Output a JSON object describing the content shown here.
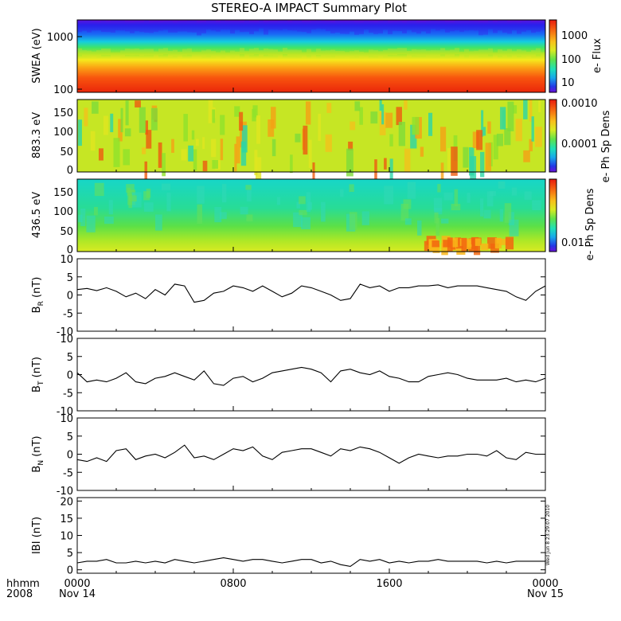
{
  "title": "STEREO-A IMPACT Summary Plot",
  "time_axis": {
    "row1": [
      "0000",
      "0800",
      "1600",
      "0000"
    ],
    "row2": [
      "Nov 14",
      "",
      "",
      "Nov 15"
    ],
    "left_row1": "hhmm",
    "left_row2": "2008"
  },
  "timestamp_note": "Wed Jun 8 23:29:07 2010",
  "colors": {
    "trace": "#000000",
    "frame": "#000000",
    "background": "#ffffff"
  },
  "chart_data": [
    {
      "type": "heatmap",
      "ylabel": "SWEA (eV)",
      "ylog": true,
      "ylim": [
        95,
        2000
      ],
      "yticks": [
        "1000",
        "100"
      ],
      "colorbar": {
        "label": "e- Flux",
        "log": true,
        "ticks": [
          "1000",
          "100",
          "10"
        ]
      },
      "pattern": "energy spectrogram: red/orange below ~250 eV, yellow-green ~300-700 eV, cyan-blue ~1000 eV, blue/violet above ~1500 eV; nearly constant with time"
    },
    {
      "type": "heatmap",
      "ylabel": "883.3 eV",
      "ylim": [
        -5,
        180
      ],
      "yticks": [
        "150",
        "100",
        "50",
        "0"
      ],
      "colorbar": {
        "label": "e- Ph Sp Dens",
        "log": true,
        "ticks": [
          "0.0010",
          "0.0001"
        ]
      },
      "pattern": "pitch-angle distribution: mostly yellow-green with scattered orange/red streaks and occasional cyan specks"
    },
    {
      "type": "heatmap",
      "ylabel": "436.5 eV",
      "ylim": [
        -5,
        180
      ],
      "yticks": [
        "150",
        "100",
        "50",
        "0"
      ],
      "colorbar": {
        "label": "e- Ph Sp Dens",
        "log": true,
        "ticks": [
          "0.01"
        ]
      },
      "pattern": "cyan-green above ~60 deg, green/yellow near 0-40 deg, orange/red enhancement near 0 deg after ~18:00"
    },
    {
      "type": "line",
      "ylabel": "B_R (nT)",
      "ylabel_main": "B",
      "ylabel_sub": "R",
      "ylabel_unit": "(nT)",
      "ylim": [
        -10,
        10
      ],
      "yticks": [
        "10",
        "5",
        "0",
        "-5",
        "-10"
      ],
      "x_hours": [
        0,
        0.5,
        1,
        1.5,
        2,
        2.5,
        3,
        3.5,
        4,
        4.5,
        5,
        5.5,
        6,
        6.5,
        7,
        7.5,
        8,
        8.5,
        9,
        9.5,
        10,
        10.5,
        11,
        11.5,
        12,
        12.5,
        13,
        13.5,
        14,
        14.5,
        15,
        15.5,
        16,
        16.5,
        17,
        17.5,
        18,
        18.5,
        19,
        19.5,
        20,
        20.5,
        21,
        21.5,
        22,
        22.5,
        23,
        23.5,
        24
      ],
      "y": [
        1.5,
        1.8,
        1.2,
        2.0,
        1.0,
        -0.5,
        0.5,
        -1.0,
        1.5,
        0.0,
        3.0,
        2.5,
        -2.0,
        -1.5,
        0.5,
        1.0,
        2.5,
        2.0,
        1.0,
        2.5,
        1.0,
        -0.5,
        0.5,
        2.5,
        2.0,
        1.0,
        0.0,
        -1.5,
        -1.0,
        3.0,
        2.0,
        2.5,
        1.0,
        2.0,
        2.0,
        2.5,
        2.5,
        2.8,
        2.0,
        2.5,
        2.5,
        2.5,
        2.0,
        1.5,
        1.0,
        -0.5,
        -1.5,
        1.0,
        2.5
      ]
    },
    {
      "type": "line",
      "ylabel": "B_T (nT)",
      "ylabel_main": "B",
      "ylabel_sub": "T",
      "ylabel_unit": "(nT)",
      "ylim": [
        -10,
        10
      ],
      "yticks": [
        "10",
        "5",
        "0",
        "-5",
        "-10"
      ],
      "x_hours": [
        0,
        0.5,
        1,
        1.5,
        2,
        2.5,
        3,
        3.5,
        4,
        4.5,
        5,
        5.5,
        6,
        6.5,
        7,
        7.5,
        8,
        8.5,
        9,
        9.5,
        10,
        10.5,
        11,
        11.5,
        12,
        12.5,
        13,
        13.5,
        14,
        14.5,
        15,
        15.5,
        16,
        16.5,
        17,
        17.5,
        18,
        18.5,
        19,
        19.5,
        20,
        20.5,
        21,
        21.5,
        22,
        22.5,
        23,
        23.5,
        24
      ],
      "y": [
        0.5,
        -2.0,
        -1.5,
        -2.0,
        -1.0,
        0.5,
        -2.0,
        -2.5,
        -1.0,
        -0.5,
        0.5,
        -0.5,
        -1.5,
        1.0,
        -2.5,
        -3.0,
        -1.0,
        -0.5,
        -2.0,
        -1.0,
        0.5,
        1.0,
        1.5,
        2.0,
        1.5,
        0.5,
        -2.0,
        1.0,
        1.5,
        0.5,
        0.0,
        1.0,
        -0.5,
        -1.0,
        -2.0,
        -2.0,
        -0.5,
        0.0,
        0.5,
        0.0,
        -1.0,
        -1.5,
        -1.5,
        -1.5,
        -1.0,
        -2.0,
        -1.5,
        -2.0,
        -1.0
      ]
    },
    {
      "type": "line",
      "ylabel": "B_N (nT)",
      "ylabel_main": "B",
      "ylabel_sub": "N",
      "ylabel_unit": "(nT)",
      "ylim": [
        -10,
        10
      ],
      "yticks": [
        "10",
        "5",
        "0",
        "-5",
        "-10"
      ],
      "x_hours": [
        0,
        0.5,
        1,
        1.5,
        2,
        2.5,
        3,
        3.5,
        4,
        4.5,
        5,
        5.5,
        6,
        6.5,
        7,
        7.5,
        8,
        8.5,
        9,
        9.5,
        10,
        10.5,
        11,
        11.5,
        12,
        12.5,
        13,
        13.5,
        14,
        14.5,
        15,
        15.5,
        16,
        16.5,
        17,
        17.5,
        18,
        18.5,
        19,
        19.5,
        20,
        20.5,
        21,
        21.5,
        22,
        22.5,
        23,
        23.5,
        24
      ],
      "y": [
        -1.5,
        -2.0,
        -1.0,
        -2.0,
        1.0,
        1.5,
        -1.5,
        -0.5,
        0.0,
        -1.0,
        0.5,
        2.5,
        -1.0,
        -0.5,
        -1.5,
        0.0,
        1.5,
        1.0,
        2.0,
        -0.5,
        -1.5,
        0.5,
        1.0,
        1.5,
        1.5,
        0.5,
        -0.5,
        1.5,
        1.0,
        2.0,
        1.5,
        0.5,
        -1.0,
        -2.5,
        -1.0,
        0.0,
        -0.5,
        -1.0,
        -0.5,
        -0.5,
        0.0,
        0.0,
        -0.5,
        1.0,
        -1.0,
        -1.5,
        0.5,
        0.0,
        0.0
      ]
    },
    {
      "type": "line",
      "ylabel": "|B| (nT)",
      "ylabel_main": "IBI",
      "ylabel_sub": "",
      "ylabel_unit": "(nT)",
      "ylim": [
        -1,
        21
      ],
      "yticks": [
        "20",
        "15",
        "10",
        "5",
        "0"
      ],
      "x_hours": [
        0,
        0.5,
        1,
        1.5,
        2,
        2.5,
        3,
        3.5,
        4,
        4.5,
        5,
        5.5,
        6,
        6.5,
        7,
        7.5,
        8,
        8.5,
        9,
        9.5,
        10,
        10.5,
        11,
        11.5,
        12,
        12.5,
        13,
        13.5,
        14,
        14.5,
        15,
        15.5,
        16,
        16.5,
        17,
        17.5,
        18,
        18.5,
        19,
        19.5,
        20,
        20.5,
        21,
        21.5,
        22,
        22.5,
        23,
        23.5,
        24
      ],
      "y": [
        2.0,
        2.5,
        2.5,
        3.0,
        2.0,
        2.0,
        2.5,
        2.0,
        2.5,
        2.0,
        3.0,
        2.5,
        2.0,
        2.5,
        3.0,
        3.5,
        3.0,
        2.5,
        3.0,
        3.0,
        2.5,
        2.0,
        2.5,
        3.0,
        3.0,
        2.0,
        2.5,
        1.5,
        1.0,
        3.0,
        2.5,
        3.0,
        2.0,
        2.5,
        2.0,
        2.5,
        2.5,
        3.0,
        2.5,
        2.5,
        2.5,
        2.5,
        2.0,
        2.5,
        2.0,
        2.5,
        2.5,
        2.5,
        2.5
      ]
    }
  ]
}
